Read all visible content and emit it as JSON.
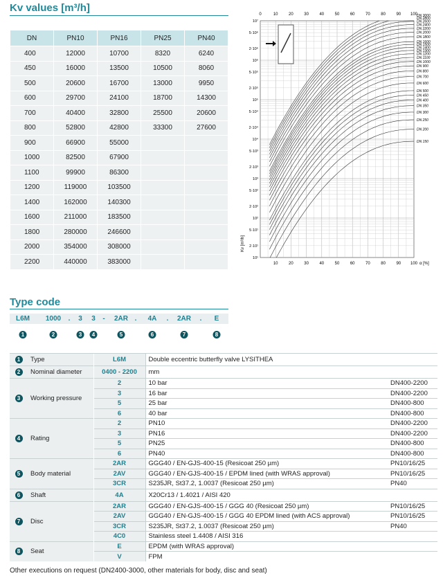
{
  "kv": {
    "title": "Kv values [m³/h]",
    "columns": [
      "DN",
      "PN10",
      "PN16",
      "PN25",
      "PN40"
    ],
    "rows": [
      [
        400,
        12000,
        10700,
        8320,
        6240
      ],
      [
        450,
        16000,
        13500,
        10500,
        8060
      ],
      [
        500,
        20600,
        16700,
        13000,
        9950
      ],
      [
        600,
        29700,
        24100,
        18700,
        14300
      ],
      [
        700,
        40400,
        32800,
        25500,
        20600
      ],
      [
        800,
        52800,
        42800,
        33300,
        27600
      ],
      [
        900,
        66900,
        55000
      ],
      [
        1000,
        82500,
        67900
      ],
      [
        1100,
        99900,
        86300
      ],
      [
        1200,
        119000,
        103500
      ],
      [
        1400,
        162000,
        140300
      ],
      [
        1600,
        211000,
        183500
      ],
      [
        1800,
        280000,
        246600
      ],
      [
        2000,
        354000,
        308000
      ],
      [
        2200,
        440000,
        383000
      ]
    ]
  },
  "diagram": {
    "top_axis": [
      0,
      10,
      20,
      30,
      40,
      50,
      60,
      70,
      80,
      90,
      100
    ],
    "bottom_axis": [
      10,
      20,
      30,
      40,
      50,
      60,
      70,
      80,
      90,
      100
    ],
    "x_label": "α [%]",
    "y_label": "Kv [m³/h]",
    "y_labels": [
      "10⁷",
      "5·10⁶",
      "2·10⁶",
      "10⁶",
      "5·10⁵",
      "2·10⁵",
      "10⁵",
      "5·10⁴",
      "2·10⁴",
      "10⁴",
      "5·10³",
      "2·10³",
      "10³",
      "5·10²",
      "2·10²",
      "10²",
      "5·10¹",
      "2·10¹",
      "10¹"
    ],
    "curve_labels": [
      "DN 3000",
      "DN 2800",
      "DN 2600",
      "DN 2400",
      "DN 2200",
      "DN 2000",
      "DN 1800",
      "DN 1600",
      "DN 1500",
      "DN 1400",
      "DN 1300",
      "DN 1200",
      "DN 1100",
      "DN 1000",
      "DN 900",
      "DN 800",
      "DN 700",
      "DN 600",
      "DN 500",
      "DN 450",
      "DN 400",
      "DN 350",
      "DN 300",
      "DN 250",
      "DN 200",
      "DN 150"
    ]
  },
  "type_code": {
    "title": "Type code",
    "code": [
      "L6M",
      "1000",
      ".",
      "3",
      "3",
      "-",
      "2AR",
      ".",
      "4A",
      ".",
      "2AR",
      ".",
      "E"
    ],
    "markers": [
      1,
      2,
      3,
      4,
      5,
      6,
      7,
      8
    ]
  },
  "spec": [
    {
      "number": 1,
      "label": "Type",
      "rows": [
        {
          "code": "L6M",
          "description": "Double eccentric butterfly valve LYSITHEA"
        }
      ]
    },
    {
      "number": 2,
      "label": "Nominal diameter",
      "rows": [
        {
          "code": "0400 - 2200",
          "description": "mm"
        }
      ]
    },
    {
      "number": 3,
      "label": "Working pressure",
      "rows": [
        {
          "code": "2",
          "description": "10 bar",
          "range": "DN400-2200"
        },
        {
          "code": "3",
          "description": "16 bar",
          "range": "DN400-2200"
        },
        {
          "code": "5",
          "description": "25 bar",
          "range": "DN400-800"
        },
        {
          "code": "6",
          "description": "40 bar",
          "range": "DN400-800"
        }
      ]
    },
    {
      "number": 4,
      "label": "Rating",
      "rows": [
        {
          "code": "2",
          "description": "PN10",
          "range": "DN400-2200"
        },
        {
          "code": "3",
          "description": "PN16",
          "range": "DN400-2200"
        },
        {
          "code": "5",
          "description": "PN25",
          "range": "DN400-800"
        },
        {
          "code": "6",
          "description": "PN40",
          "range": "DN400-800"
        }
      ]
    },
    {
      "number": 5,
      "label": "Body material",
      "rows": [
        {
          "code": "2AR",
          "description": "GGG40 / EN-GJS-400-15 (Resicoat 250 µm)",
          "range": "PN10/16/25"
        },
        {
          "code": "2AV",
          "description": "GGG40 / EN-GJS-400-15 / EPDM lined (with WRAS approval)",
          "range": "PN10/16/25"
        },
        {
          "code": "3CR",
          "description": "S235JR, St37.2, 1.0037 (Resicoat 250 µm)",
          "range": "PN40"
        }
      ]
    },
    {
      "number": 6,
      "label": "Shaft",
      "rows": [
        {
          "code": "4A",
          "description": "X20Cr13 / 1.4021 / AISI 420"
        }
      ]
    },
    {
      "number": 7,
      "label": "Disc",
      "rows": [
        {
          "code": "2AR",
          "description": "GGG40 / EN-GJS-400-15 / GGG 40 (Resicoat 250 µm)",
          "range": "PN10/16/25"
        },
        {
          "code": "2AV",
          "description": "GGG40 / EN-GJS-400-15 / GGG 40 EPDM lined (with ACS approval)",
          "range": "PN10/16/25"
        },
        {
          "code": "3CR",
          "description": "S235JR, St37.2, 1.0037 (Resicoat 250 µm)",
          "range": "PN40"
        },
        {
          "code": "4C0",
          "description": "Stainless steel 1.4408 / AISI 316"
        }
      ]
    },
    {
      "number": 8,
      "label": "Seat",
      "rows": [
        {
          "code": "E",
          "description": "EPDM (with WRAS approval)"
        },
        {
          "code": "V",
          "description": "FPM"
        }
      ]
    }
  ],
  "footer": "Other executions on request (DN2400-3000, other materials for body, disc and seat)"
}
